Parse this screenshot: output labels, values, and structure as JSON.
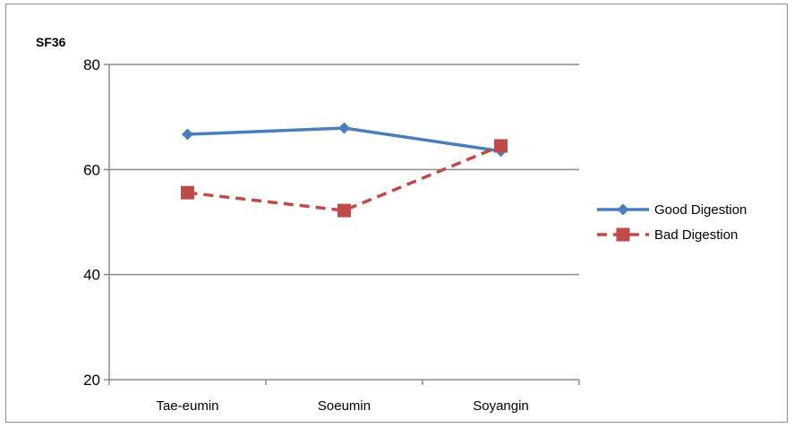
{
  "chart_data": {
    "type": "line",
    "ylabel": "SF36",
    "xlabel": "",
    "categories": [
      "Tae-eumin",
      "Soeumin",
      "Soyangin"
    ],
    "ylim": [
      20,
      80
    ],
    "yticks": [
      "20",
      "40",
      "60",
      "80"
    ],
    "grid": true,
    "legend_position": "right",
    "series": [
      {
        "name": "Good Digestion",
        "values": [
          66.7,
          67.9,
          63.5
        ],
        "color": "#4a7ebb",
        "marker": "diamond",
        "style": "solid"
      },
      {
        "name": "Bad Digestion",
        "values": [
          55.6,
          52.2,
          64.5
        ],
        "color": "#be4b48",
        "marker": "square",
        "style": "dashed"
      }
    ]
  }
}
